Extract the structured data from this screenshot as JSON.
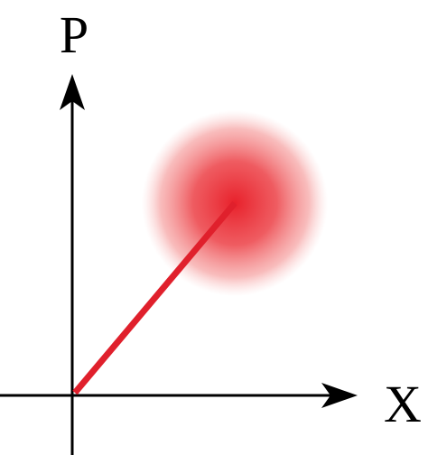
{
  "axes": {
    "vertical_label": "P",
    "horizontal_label": "X"
  }
}
